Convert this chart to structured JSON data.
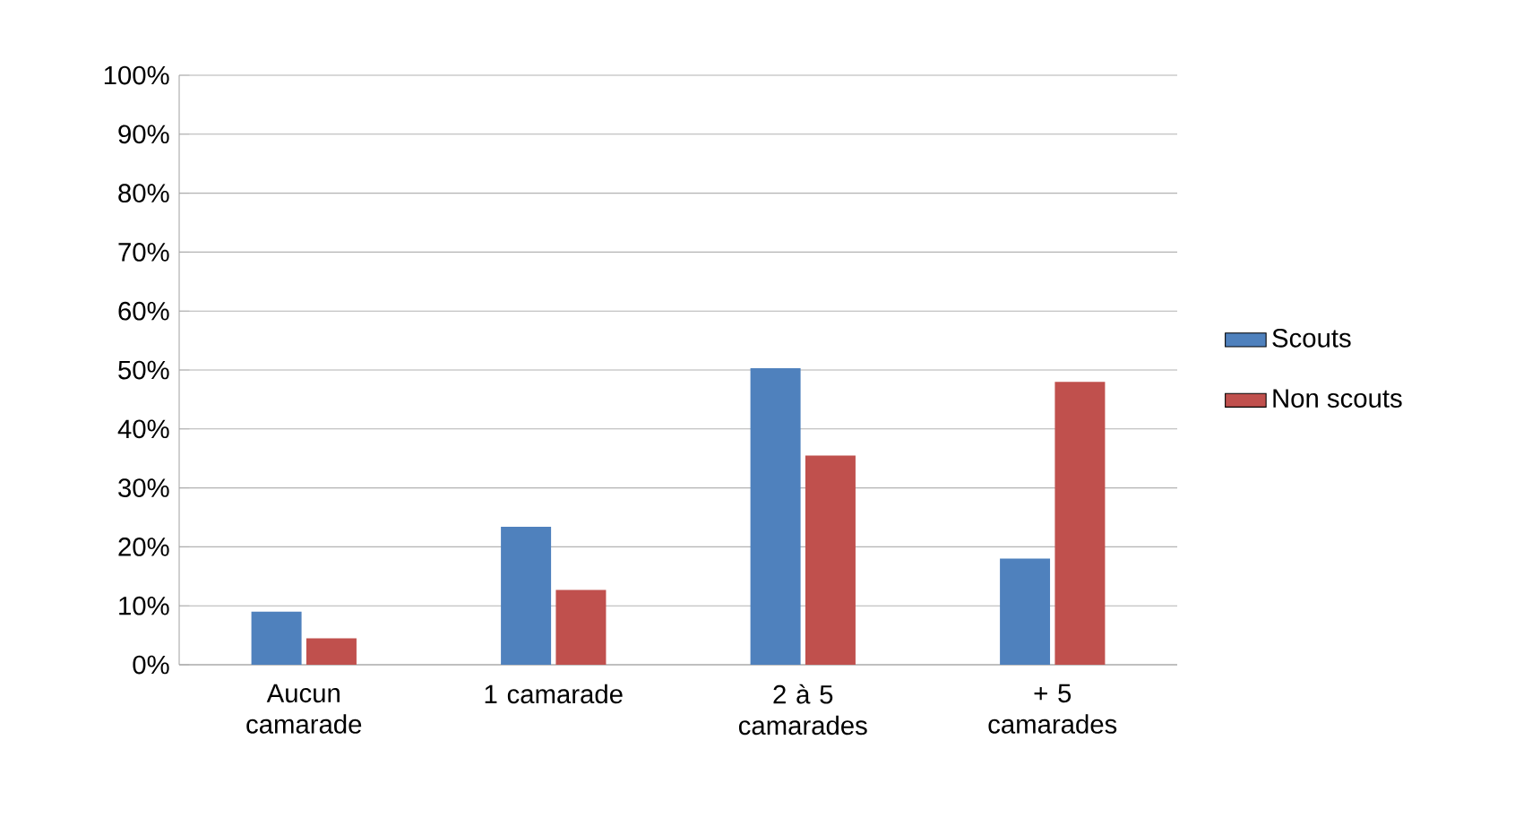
{
  "chart_data": {
    "type": "bar",
    "categories": [
      "Aucun camarade",
      "1 camarade",
      "2 à 5 camarades",
      "+ 5 camarades"
    ],
    "series": [
      {
        "name": "Scouts",
        "color": "#4f81bd",
        "values": [
          9,
          23.4,
          50.3,
          18
        ]
      },
      {
        "name": "Non scouts",
        "color": "#c0504d",
        "values": [
          4.5,
          12.7,
          35.5,
          48
        ]
      }
    ],
    "ylim": [
      0,
      100
    ],
    "yticks": [
      {
        "value": 0,
        "label": "0%"
      },
      {
        "value": 10,
        "label": "10%"
      },
      {
        "value": 20,
        "label": "20%"
      },
      {
        "value": 30,
        "label": "30%"
      },
      {
        "value": 40,
        "label": "40%"
      },
      {
        "value": 50,
        "label": "50%"
      },
      {
        "value": 60,
        "label": "60%"
      },
      {
        "value": 70,
        "label": "70%"
      },
      {
        "value": 80,
        "label": "80%"
      },
      {
        "value": 90,
        "label": "90%"
      },
      {
        "value": 100,
        "label": "100%"
      }
    ],
    "grid": "y",
    "legend": "right"
  }
}
